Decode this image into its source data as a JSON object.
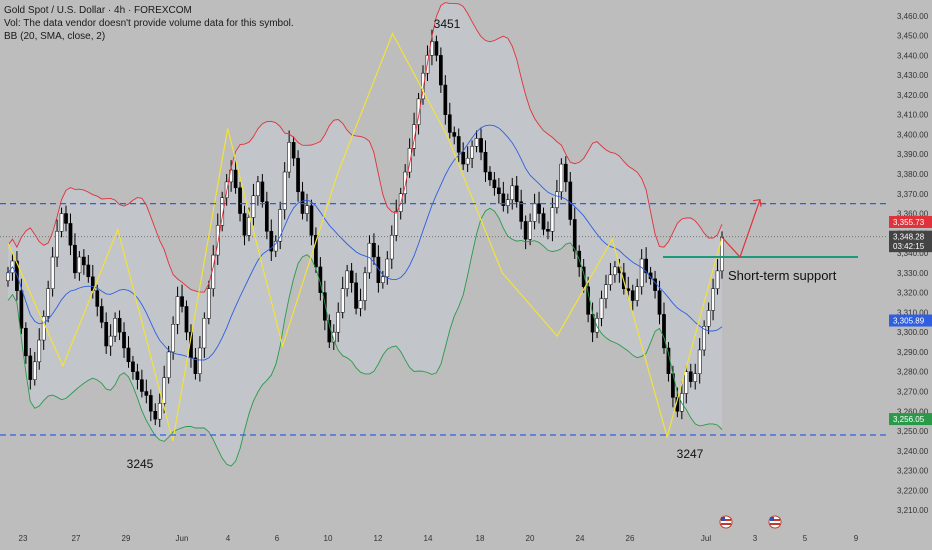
{
  "legend": {
    "symbol": "Gold Spot / U.S. Dollar · 4h · FOREXCOM",
    "vol_note": "Vol: The data vendor doesn't provide volume data for this symbol.",
    "bb": "BB (20, SMA, close, 2)"
  },
  "colors": {
    "background": "#bdbdbd",
    "candle_up": "#ffffff",
    "candle_down": "#000000",
    "bb_upper": "#e0323a",
    "bb_middle": "#2f5fe0",
    "bb_lower": "#2a9a4a",
    "bb_fill": "#c7ccd6",
    "zigzag": "#f2e23a",
    "blue_dashed": "#2f5fe0",
    "support": "#1a9a7a",
    "arrow": "#e0323a"
  },
  "chart_data": {
    "type": "candlestick",
    "ylim": [
      3205,
      3468
    ],
    "y_ticks": [
      "3,460.00",
      "3,450.00",
      "3,440.00",
      "3,430.00",
      "3,420.00",
      "3,410.00",
      "3,400.00",
      "3,390.00",
      "3,380.00",
      "3,370.00",
      "3,360.00",
      "3,350.00",
      "3,340.00",
      "3,330.00",
      "3,320.00",
      "3,310.00",
      "3,300.00",
      "3,290.00",
      "3,280.00",
      "3,270.00",
      "3,260.00",
      "3,250.00",
      "3,240.00",
      "3,230.00",
      "3,220.00",
      "3,210.00"
    ],
    "x_ticks": [
      "23",
      "27",
      "29",
      "Jun",
      "4",
      "6",
      "10",
      "12",
      "14",
      "18",
      "20",
      "24",
      "26",
      "Jul",
      "3",
      "5",
      "9"
    ],
    "price_labels": [
      {
        "text": "3,355.73",
        "value": 3355.73,
        "color": "#e0323a"
      },
      {
        "text": "3,348.28",
        "value": 3348.28,
        "color": "#444444"
      },
      {
        "text": "03:42:15",
        "value": 3343.5,
        "color": "#444444"
      },
      {
        "text": "3,305.89",
        "value": 3305.89,
        "color": "#2f5fe0"
      },
      {
        "text": "3,256.05",
        "value": 3256.05,
        "color": "#2a9a4a"
      }
    ],
    "horizontal_levels": [
      {
        "name": "resistance",
        "value": 3365,
        "style": "dashed"
      },
      {
        "name": "support-low",
        "value": 3248,
        "style": "dashed"
      },
      {
        "name": "current-price",
        "value": 3348.28,
        "style": "dotted"
      }
    ],
    "annotations": [
      {
        "text": "3245",
        "value": 3245
      },
      {
        "text": "3451",
        "value": 3451
      },
      {
        "text": "3247",
        "value": 3247
      },
      {
        "text": "Short-term support",
        "value": 3336
      }
    ],
    "zigzag_values": [
      3345,
      3283,
      3352,
      3245,
      3403,
      3293,
      3380,
      3451,
      3399,
      3330,
      3298,
      3347,
      3247,
      3348
    ],
    "support_line_value": 3338,
    "projection": {
      "from": 3348,
      "dip": 3338,
      "target": 3367
    },
    "close_values": [
      3330,
      3336,
      3321,
      3302,
      3288,
      3276,
      3285,
      3296,
      3308,
      3322,
      3338,
      3351,
      3360,
      3355,
      3344,
      3330,
      3338,
      3334,
      3328,
      3321,
      3313,
      3305,
      3293,
      3298,
      3307,
      3300,
      3292,
      3285,
      3280,
      3276,
      3270,
      3268,
      3260,
      3256,
      3264,
      3277,
      3290,
      3304,
      3318,
      3313,
      3300,
      3287,
      3279,
      3292,
      3307,
      3322,
      3339,
      3354,
      3368,
      3376,
      3382,
      3373,
      3360,
      3349,
      3358,
      3369,
      3376,
      3366,
      3351,
      3341,
      3346,
      3362,
      3381,
      3396,
      3388,
      3371,
      3360,
      3364,
      3349,
      3333,
      3320,
      3306,
      3295,
      3300,
      3310,
      3322,
      3331,
      3325,
      3312,
      3316,
      3330,
      3345,
      3338,
      3325,
      3328,
      3337,
      3349,
      3361,
      3370,
      3381,
      3393,
      3405,
      3418,
      3431,
      3440,
      3447,
      3440,
      3425,
      3410,
      3401,
      3399,
      3391,
      3385,
      3388,
      3394,
      3398,
      3391,
      3381,
      3377,
      3373,
      3370,
      3364,
      3367,
      3374,
      3366,
      3356,
      3347,
      3356,
      3365,
      3360,
      3352,
      3351,
      3363,
      3371,
      3385,
      3376,
      3357,
      3341,
      3333,
      3323,
      3309,
      3300,
      3307,
      3317,
      3324,
      3329,
      3333,
      3330,
      3322,
      3321,
      3316,
      3323,
      3337,
      3330,
      3327,
      3321,
      3309,
      3292,
      3279,
      3267,
      3260,
      3269,
      3280,
      3275,
      3279,
      3291,
      3303,
      3311,
      3322,
      3331,
      3348
    ]
  }
}
